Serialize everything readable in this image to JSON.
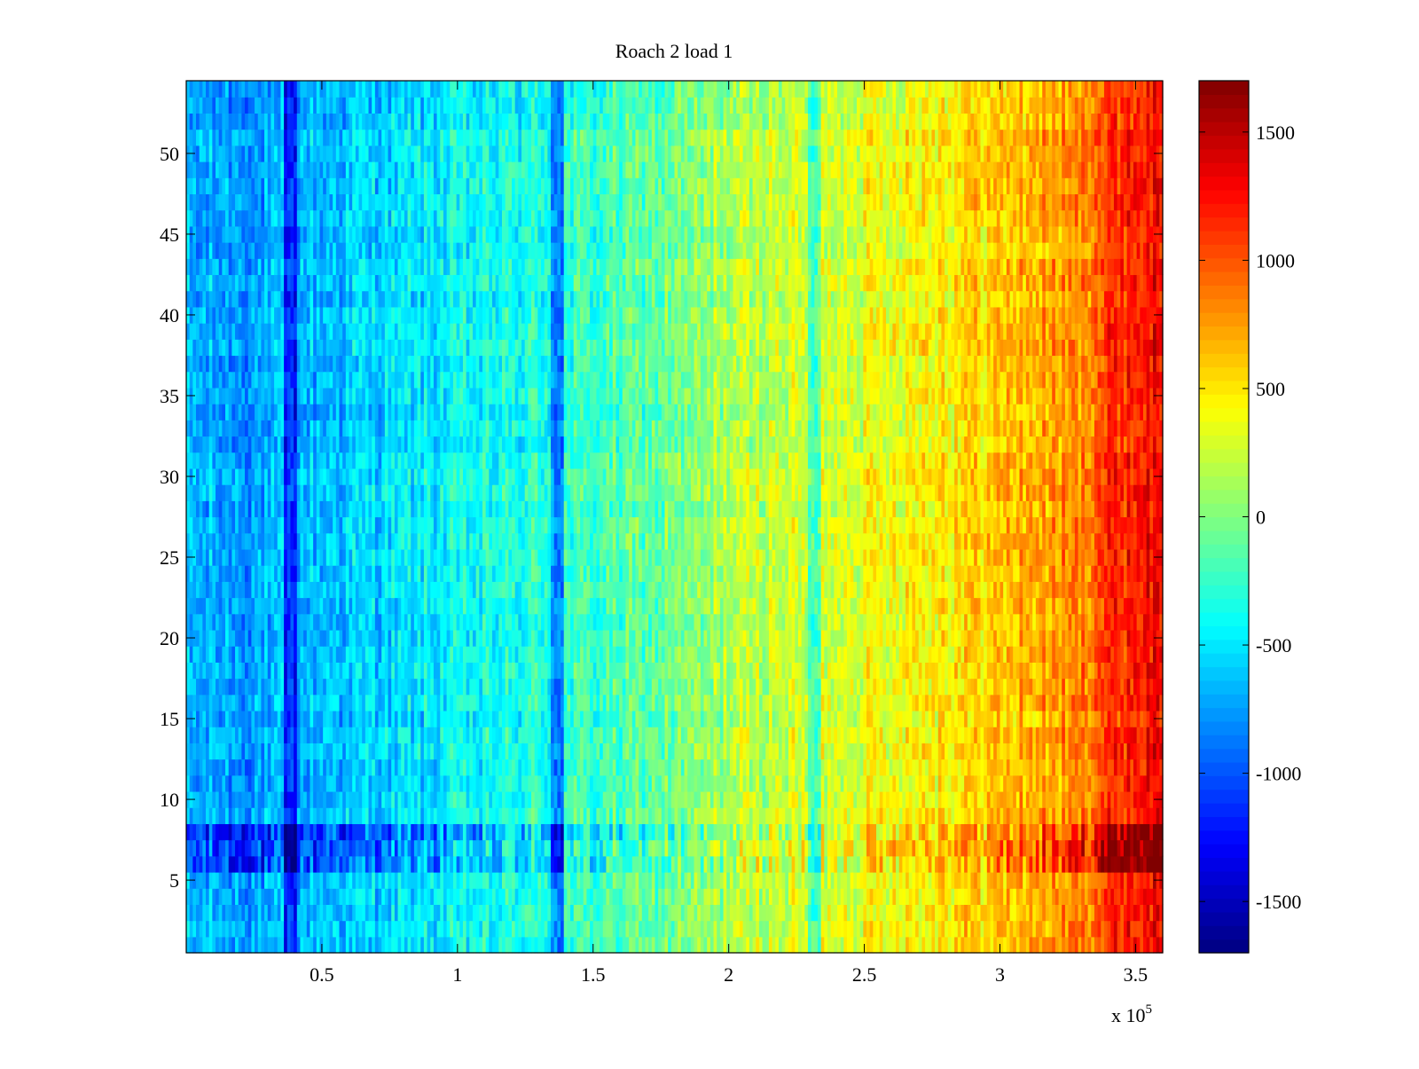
{
  "chart_data": {
    "type": "heatmap",
    "title": "Roach 2 load 1",
    "xlabel": "",
    "ylabel": "",
    "x_exponent_label": "x 10",
    "x_exponent_power": "5",
    "xlim": [
      0,
      3.6
    ],
    "ylim": [
      0.5,
      54.5
    ],
    "x_ticks": [
      0.5,
      1,
      1.5,
      2,
      2.5,
      3,
      3.5
    ],
    "x_tick_labels": [
      "0.5",
      "1",
      "1.5",
      "2",
      "2.5",
      "3",
      "3.5"
    ],
    "y_ticks": [
      5,
      10,
      15,
      20,
      25,
      30,
      35,
      40,
      45,
      50
    ],
    "y_tick_labels": [
      "5",
      "10",
      "15",
      "20",
      "25",
      "30",
      "35",
      "40",
      "45",
      "50"
    ],
    "colorbar": {
      "colormap": "jet",
      "clim": [
        -1700,
        1700
      ],
      "ticks": [
        -1500,
        -1000,
        -500,
        0,
        500,
        1000,
        1500
      ],
      "tick_labels": [
        "-1500",
        "-1000",
        "-500",
        "0",
        "500",
        "1000",
        "1500"
      ]
    },
    "rows": 54,
    "trend_profile": {
      "x_in_1e5": [
        0,
        0.3,
        0.5,
        1.0,
        1.5,
        1.9,
        2.0,
        2.5,
        3.0,
        3.3,
        3.4,
        3.6
      ],
      "value": [
        -700,
        -750,
        -650,
        -450,
        -250,
        0,
        150,
        350,
        600,
        800,
        1100,
        1300
      ]
    },
    "dark_columns_x_in_1e5": [
      0.38,
      1.37,
      2.32
    ],
    "hot_rows": [
      6,
      7,
      8
    ]
  }
}
